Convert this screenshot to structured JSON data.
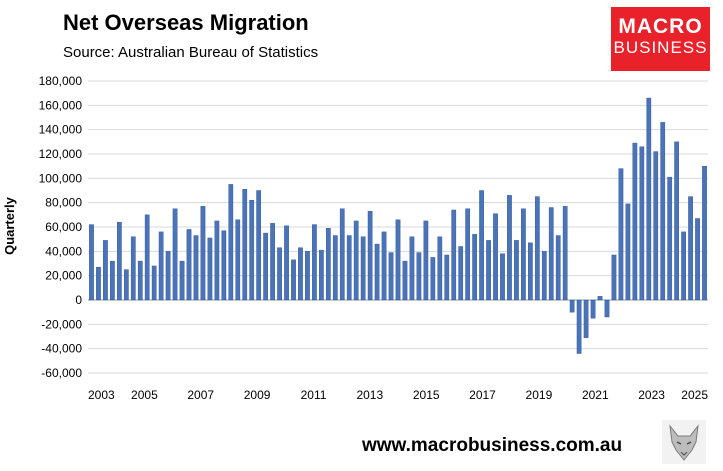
{
  "header": {
    "title": "Net Overseas Migration",
    "subtitle": "Source: Australian Bureau of Statistics"
  },
  "logo": {
    "line1": "MACRO",
    "line2": "BUSINESS",
    "color": "#e8212b"
  },
  "footer": {
    "url": "www.macrobusiness.com.au",
    "mascot_icon": "wolf-icon"
  },
  "chart_data": {
    "type": "bar",
    "ylabel": "Quarterly",
    "ylim": [
      -60000,
      180000
    ],
    "yticks": [
      -60000,
      -40000,
      -20000,
      0,
      20000,
      40000,
      60000,
      80000,
      100000,
      120000,
      140000,
      160000,
      180000
    ],
    "ytick_labels": [
      "-60,000",
      "-40,000",
      "-20,000",
      "0",
      "20,000",
      "40,000",
      "60,000",
      "80,000",
      "100,000",
      "120,000",
      "140,000",
      "160,000",
      "180,000"
    ],
    "xtick_labels": [
      "2003",
      "2005",
      "2007",
      "2009",
      "2011",
      "2013",
      "2015",
      "2017",
      "2019",
      "2021",
      "2023",
      "2025"
    ],
    "grid": "horizontal",
    "bar_color": "#4a73b8",
    "series": [
      {
        "values": [
          62000,
          27000,
          49000,
          32000,
          64000,
          25000,
          52000,
          32000,
          70000,
          28000,
          56000,
          40000,
          75000,
          32000,
          58000,
          53000,
          77000,
          51000,
          65000,
          57000,
          95000,
          66000,
          91000,
          82000,
          90000,
          55000,
          63000,
          43000,
          61000,
          33000,
          43000,
          40000,
          62000,
          41000,
          59000,
          53000,
          75000,
          53000,
          65000,
          52000,
          73000,
          46000,
          56000,
          39000,
          66000,
          32000,
          52000,
          39000,
          65000,
          35000,
          52000,
          37000,
          74000,
          44000,
          75000,
          54000,
          90000,
          49000,
          71000,
          38000,
          86000,
          49000,
          75000,
          47000,
          85000,
          40000,
          76000,
          53000,
          77000,
          -10000,
          -44000,
          -31000,
          -15000,
          3000,
          -14000,
          37000,
          108000,
          79000,
          129000,
          126000,
          166000,
          122000,
          146000,
          101000,
          130000,
          56000,
          85000,
          67000,
          110000
        ]
      }
    ]
  }
}
